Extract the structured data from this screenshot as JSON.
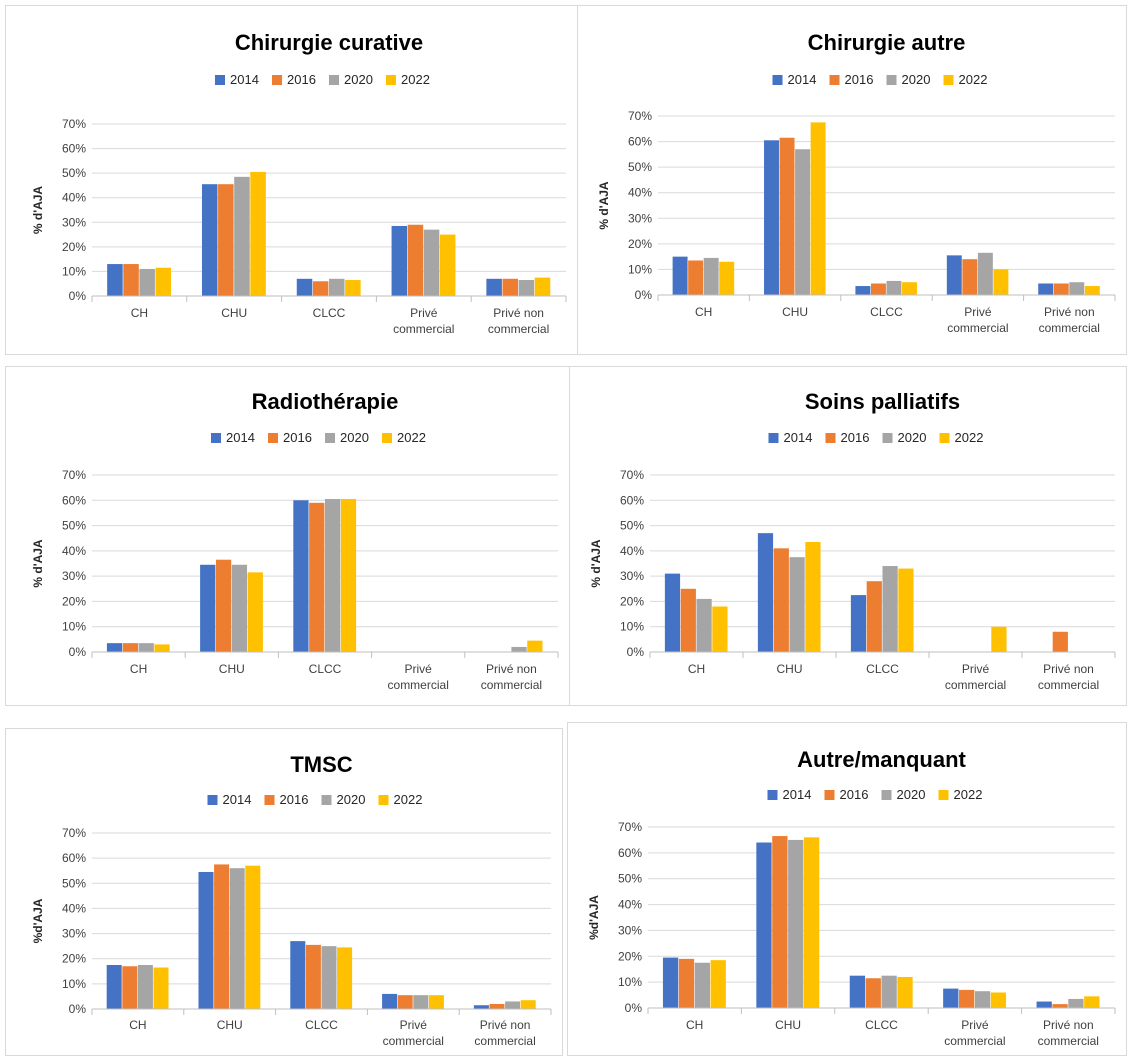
{
  "colors": {
    "2014": "#4472C4",
    "2016": "#ED7D31",
    "2020": "#A5A5A5",
    "2022": "#FFC000"
  },
  "chart_data": [
    {
      "type": "bar",
      "title": "Chirurgie curative",
      "ylabel": "% d'AJA",
      "categories": [
        "CH",
        "CHU",
        "CLCC",
        "Privé\ncommercial",
        "Privé non\ncommercial"
      ],
      "yticks": [
        "0%",
        "10%",
        "20%",
        "30%",
        "40%",
        "50%",
        "60%",
        "70%"
      ],
      "ylim": [
        0,
        70
      ],
      "legend": "top",
      "series": [
        {
          "name": "2014",
          "values": [
            13.0,
            45.5,
            7.0,
            28.5,
            7.0
          ]
        },
        {
          "name": "2016",
          "values": [
            13.0,
            45.5,
            6.0,
            29.0,
            7.0
          ]
        },
        {
          "name": "2020",
          "values": [
            11.0,
            48.5,
            7.0,
            27.0,
            6.5
          ]
        },
        {
          "name": "2022",
          "values": [
            11.5,
            50.5,
            6.5,
            25.0,
            7.5
          ]
        }
      ]
    },
    {
      "type": "bar",
      "title": "Chirurgie autre",
      "ylabel": "% d'AJA",
      "categories": [
        "CH",
        "CHU",
        "CLCC",
        "Privé\ncommercial",
        "Privé non\ncommercial"
      ],
      "yticks": [
        "0%",
        "10%",
        "20%",
        "30%",
        "40%",
        "50%",
        "60%",
        "70%"
      ],
      "ylim": [
        0,
        70
      ],
      "legend": "top",
      "series": [
        {
          "name": "2014",
          "values": [
            15.0,
            60.5,
            3.5,
            15.5,
            4.5
          ]
        },
        {
          "name": "2016",
          "values": [
            13.5,
            61.5,
            4.5,
            14.0,
            4.5
          ]
        },
        {
          "name": "2020",
          "values": [
            14.5,
            57.0,
            5.5,
            16.5,
            5.0
          ]
        },
        {
          "name": "2022",
          "values": [
            13.0,
            67.5,
            5.0,
            10.0,
            3.5
          ]
        }
      ]
    },
    {
      "type": "bar",
      "title": "Radiothérapie",
      "ylabel": "% d'AJA",
      "categories": [
        "CH",
        "CHU",
        "CLCC",
        "Privé\ncommercial",
        "Privé non\ncommercial"
      ],
      "yticks": [
        "0%",
        "10%",
        "20%",
        "30%",
        "40%",
        "50%",
        "60%",
        "70%"
      ],
      "ylim": [
        0,
        70
      ],
      "legend": "top",
      "series": [
        {
          "name": "2014",
          "values": [
            3.5,
            34.5,
            60.0,
            0,
            0
          ]
        },
        {
          "name": "2016",
          "values": [
            3.5,
            36.5,
            59.0,
            0,
            0
          ]
        },
        {
          "name": "2020",
          "values": [
            3.5,
            34.5,
            60.5,
            0,
            2.0
          ]
        },
        {
          "name": "2022",
          "values": [
            3.0,
            31.5,
            60.5,
            0,
            4.5
          ]
        }
      ]
    },
    {
      "type": "bar",
      "title": "Soins palliatifs",
      "ylabel": "% d'AJA",
      "categories": [
        "CH",
        "CHU",
        "CLCC",
        "Privé\ncommercial",
        "Privé non\ncommercial"
      ],
      "yticks": [
        "0%",
        "10%",
        "20%",
        "30%",
        "40%",
        "50%",
        "60%",
        "70%"
      ],
      "ylim": [
        0,
        70
      ],
      "legend": "top",
      "series": [
        {
          "name": "2014",
          "values": [
            31.0,
            47.0,
            22.5,
            0,
            0
          ]
        },
        {
          "name": "2016",
          "values": [
            25.0,
            41.0,
            28.0,
            0,
            8.0
          ]
        },
        {
          "name": "2020",
          "values": [
            21.0,
            37.5,
            34.0,
            0,
            0
          ]
        },
        {
          "name": "2022",
          "values": [
            18.0,
            43.5,
            33.0,
            10.0,
            0
          ]
        }
      ]
    },
    {
      "type": "bar",
      "title": "TMSC",
      "ylabel": "%d'AJA",
      "categories": [
        "CH",
        "CHU",
        "CLCC",
        "Privé\ncommercial",
        "Privé non\ncommercial"
      ],
      "yticks": [
        "0%",
        "10%",
        "20%",
        "30%",
        "40%",
        "50%",
        "60%",
        "70%"
      ],
      "ylim": [
        0,
        70
      ],
      "legend": "top",
      "series": [
        {
          "name": "2014",
          "values": [
            17.5,
            54.5,
            27.0,
            6.0,
            1.5
          ]
        },
        {
          "name": "2016",
          "values": [
            17.0,
            57.5,
            25.5,
            5.5,
            2.0
          ]
        },
        {
          "name": "2020",
          "values": [
            17.5,
            56.0,
            25.0,
            5.5,
            3.0
          ]
        },
        {
          "name": "2022",
          "values": [
            16.5,
            57.0,
            24.5,
            5.5,
            3.5
          ]
        }
      ]
    },
    {
      "type": "bar",
      "title": "Autre/manquant",
      "ylabel": "%d'AJA",
      "categories": [
        "CH",
        "CHU",
        "CLCC",
        "Privé\ncommercial",
        "Privé non\ncommercial"
      ],
      "yticks": [
        "0%",
        "10%",
        "20%",
        "30%",
        "40%",
        "50%",
        "60%",
        "70%"
      ],
      "ylim": [
        0,
        70
      ],
      "legend": "top",
      "series": [
        {
          "name": "2014",
          "values": [
            19.5,
            64.0,
            12.5,
            7.5,
            2.5
          ]
        },
        {
          "name": "2016",
          "values": [
            19.0,
            66.5,
            11.5,
            7.0,
            1.5
          ]
        },
        {
          "name": "2020",
          "values": [
            17.5,
            65.0,
            12.5,
            6.5,
            3.5
          ]
        },
        {
          "name": "2022",
          "values": [
            18.5,
            66.0,
            12.0,
            6.0,
            4.5
          ]
        }
      ]
    }
  ]
}
